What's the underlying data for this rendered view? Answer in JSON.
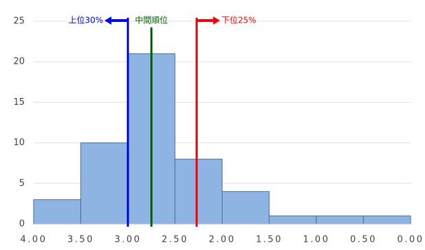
{
  "chart_data": {
    "type": "histogram",
    "bins": [
      4.0,
      3.5,
      3.0,
      2.5,
      2.0,
      1.5,
      1.0,
      0.5,
      0.0
    ],
    "values": [
      3,
      10,
      21,
      8,
      4,
      1,
      1,
      1
    ],
    "color": "#8db4e2",
    "edge_color": "#4a6e9c",
    "xlim": [
      4.0,
      0.0
    ],
    "xticks": [
      {
        "value": 4.0,
        "label": "4.00"
      },
      {
        "value": 3.5,
        "label": "3.50"
      },
      {
        "value": 3.0,
        "label": "3.00"
      },
      {
        "value": 2.5,
        "label": "2.50"
      },
      {
        "value": 2.0,
        "label": "2.00"
      },
      {
        "value": 1.5,
        "label": "1.50"
      },
      {
        "value": 1.0,
        "label": "1.00"
      },
      {
        "value": 0.5,
        "label": "0.50"
      },
      {
        "value": 0.0,
        "label": "0.00"
      }
    ],
    "ylim": [
      0,
      25
    ],
    "yticks": [
      0,
      5,
      10,
      15,
      20,
      25
    ],
    "grid": true,
    "markers": [
      {
        "x": 3.0,
        "label": "上位30%",
        "color": "#0000ff",
        "arrow": "left"
      },
      {
        "x": 2.75,
        "label": "中間順位",
        "color": "#006400",
        "arrow": "none"
      },
      {
        "x": 2.27,
        "label": "下位25%",
        "color": "#ff0000",
        "arrow": "right"
      }
    ]
  }
}
